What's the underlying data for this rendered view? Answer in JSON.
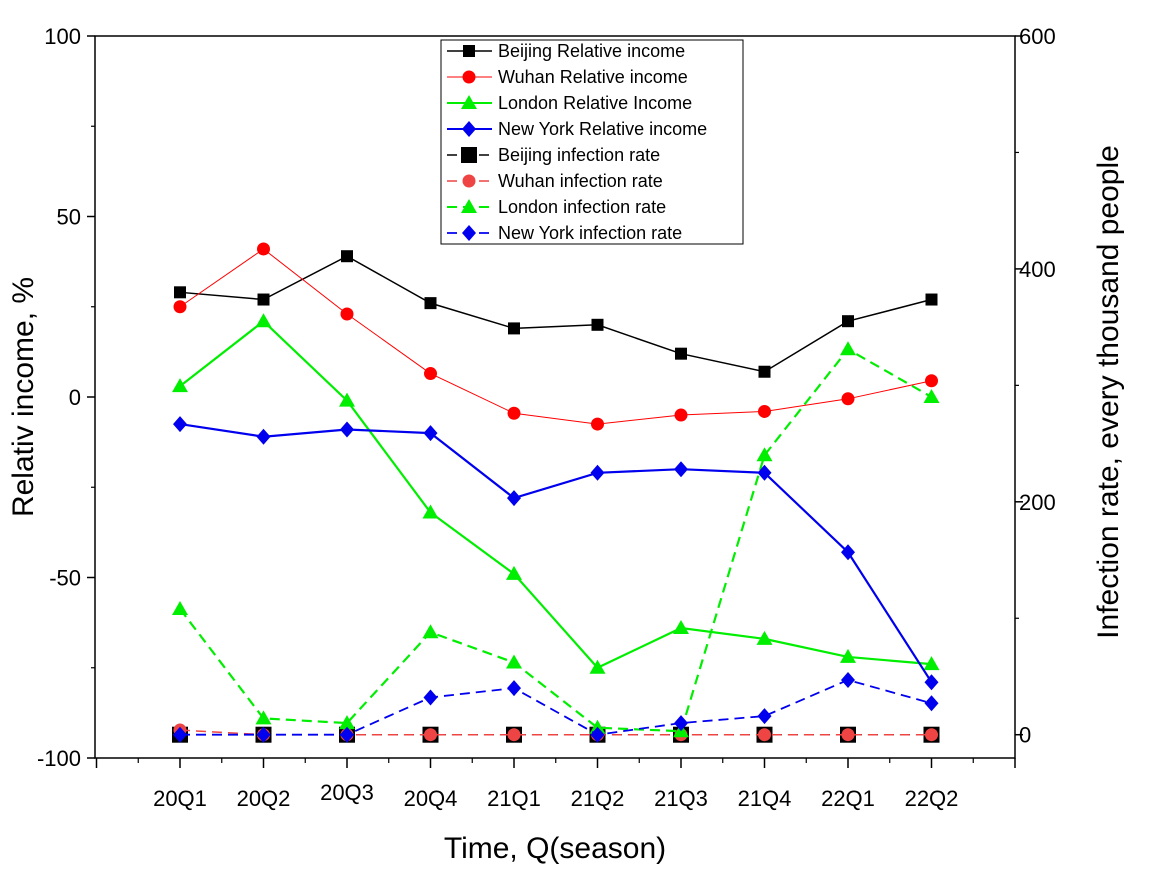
{
  "chart_data": {
    "type": "line",
    "categories": [
      "20Q1",
      "20Q2",
      "20Q3",
      "20Q4",
      "21Q1",
      "21Q2",
      "21Q3",
      "21Q4",
      "22Q1",
      "22Q2"
    ],
    "xlabel": "Time, Q(season)",
    "ylabel": "Relativ income, %",
    "y2label": "Infection rate, every thousand people",
    "ylim": [
      -100,
      100
    ],
    "y2lim": [
      -20,
      600
    ],
    "yticks": [
      -100,
      -50,
      0,
      50,
      100
    ],
    "y2ticks": [
      0,
      200,
      400,
      600
    ],
    "grid": false,
    "legend_position": "top-center",
    "series": [
      {
        "name": "Beijing Relative income",
        "axis": "left",
        "color": "#000000",
        "marker": "square",
        "dash": "solid",
        "width": 1.5,
        "values": [
          29,
          27,
          39,
          26,
          19,
          20,
          12,
          7,
          21,
          27
        ]
      },
      {
        "name": "Wuhan Relative income",
        "axis": "left",
        "color": "#ff0000",
        "marker": "circle",
        "dash": "solid",
        "width": 1,
        "values": [
          25,
          41,
          23,
          6.5,
          -4.5,
          -7.5,
          -5,
          -4,
          -0.5,
          4.5
        ]
      },
      {
        "name": "London Relative Income",
        "axis": "left",
        "color": "#00ee00",
        "marker": "triangle",
        "dash": "solid",
        "width": 2.2,
        "values": [
          3,
          21,
          -1,
          -32,
          -49,
          -75,
          -64,
          -67,
          -72,
          -74
        ]
      },
      {
        "name": "New York Relative income",
        "axis": "left",
        "color": "#0000ee",
        "marker": "diamond",
        "dash": "solid",
        "width": 2.2,
        "values": [
          -7.5,
          -11,
          -9,
          -10,
          -28,
          -21,
          -20,
          -21,
          -43,
          -79
        ]
      },
      {
        "name": "Beijing infection rate",
        "axis": "right",
        "color": "#000000",
        "marker": "square-lg",
        "dash": "dashed",
        "width": 1.5,
        "values": [
          0,
          0,
          0,
          0,
          0,
          0,
          0,
          0,
          0,
          0
        ]
      },
      {
        "name": "Wuhan infection rate",
        "axis": "right",
        "color": "#ee4444",
        "marker": "circle",
        "dash": "dashed",
        "width": 1.5,
        "values": [
          4,
          0,
          0,
          0,
          0,
          0,
          0,
          0,
          0,
          0
        ]
      },
      {
        "name": "London infection rate",
        "axis": "right",
        "color": "#00ee00",
        "marker": "triangle",
        "dash": "dashed",
        "width": 2.2,
        "values": [
          108,
          14,
          10,
          88,
          62,
          6,
          3,
          240,
          331,
          290
        ]
      },
      {
        "name": "New York infection rate",
        "axis": "right",
        "color": "#0000ee",
        "marker": "diamond",
        "dash": "dashed",
        "width": 1.8,
        "values": [
          0,
          0,
          0,
          32,
          40,
          0,
          10,
          16,
          47,
          27
        ]
      }
    ]
  }
}
